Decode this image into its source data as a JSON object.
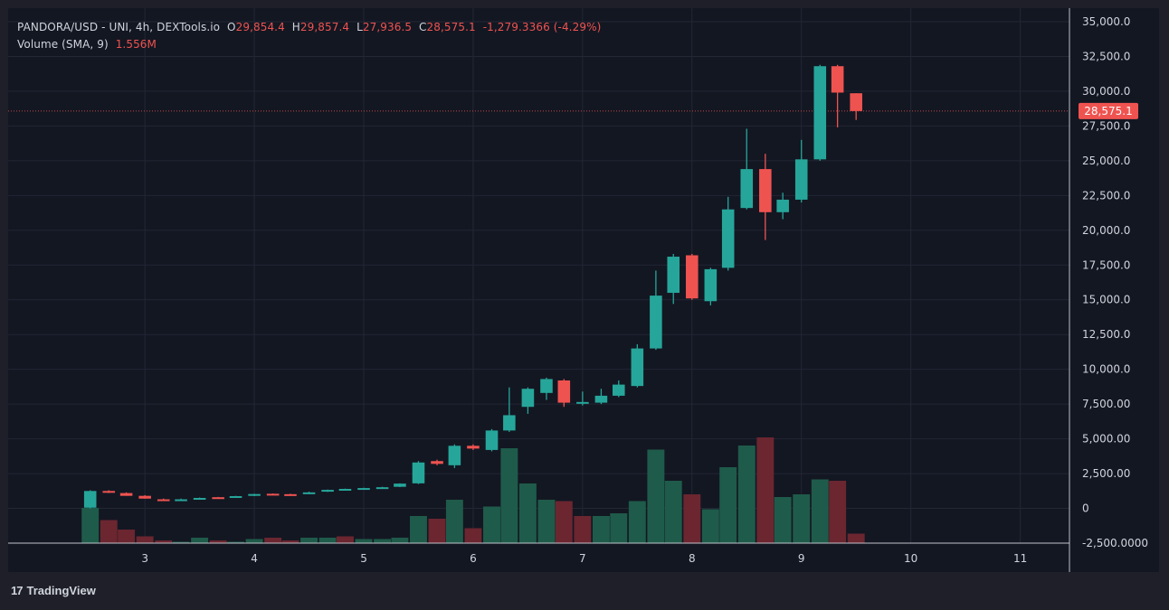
{
  "legend": {
    "symbol": "PANDORA/USD - UNI, 4h, DEXTools.io",
    "open_prefix": "O",
    "open": "29,854.4",
    "high_prefix": "H",
    "high": "29,857.4",
    "low_prefix": "L",
    "low": "27,936.5",
    "close_prefix": "C",
    "close": "28,575.1",
    "change": "-1,279.3366 (-4.29%)",
    "volume_label": "Volume (SMA, 9)",
    "volume_value": "1.556M"
  },
  "footer": {
    "logo_mark": "17",
    "brand": "TradingView"
  },
  "colors": {
    "up": "#26a69a",
    "down": "#ef5350",
    "vol_up": "#1f5b4a",
    "vol_down": "#6b2630",
    "background": "#131722",
    "grid": "#232734",
    "text": "#d1d4dc"
  },
  "chart_data": {
    "type": "candlestick",
    "ylim": [
      -2500,
      35000
    ],
    "price_ticks": [
      "35,000.0",
      "32,500.0",
      "30,000.0",
      "27,500.0",
      "25,000.0",
      "22,500.0",
      "20,000.0",
      "17,500.0",
      "15,000.0",
      "12,500.0",
      "10,000.0",
      "7,500.00",
      "5,000.00",
      "2,500.00",
      "0",
      "-2,500.0000"
    ],
    "price_tick_values": [
      35000,
      32500,
      30000,
      27500,
      25000,
      22500,
      20000,
      17500,
      15000,
      12500,
      10000,
      7500,
      5000,
      2500,
      0,
      -2500
    ],
    "x_ticks": [
      "3",
      "4",
      "5",
      "6",
      "7",
      "8",
      "9",
      "10",
      "11"
    ],
    "x_tick_values": [
      3,
      4,
      5,
      6,
      7,
      8,
      9,
      10,
      11
    ],
    "xlim": [
      1.75,
      11.45
    ],
    "last_price": 28575.1,
    "last_price_label": "28,575.1",
    "candles": [
      {
        "t": 2.5,
        "o": 50,
        "h": 1300,
        "l": 0,
        "c": 1250
      },
      {
        "t": 2.67,
        "o": 1250,
        "h": 1300,
        "l": 1100,
        "c": 1150
      },
      {
        "t": 2.83,
        "o": 1100,
        "h": 1150,
        "l": 900,
        "c": 900
      },
      {
        "t": 3.0,
        "o": 900,
        "h": 950,
        "l": 700,
        "c": 700
      },
      {
        "t": 3.17,
        "o": 650,
        "h": 700,
        "l": 550,
        "c": 580
      },
      {
        "t": 3.33,
        "o": 580,
        "h": 700,
        "l": 560,
        "c": 650
      },
      {
        "t": 3.5,
        "o": 650,
        "h": 780,
        "l": 630,
        "c": 750
      },
      {
        "t": 3.67,
        "o": 800,
        "h": 820,
        "l": 770,
        "c": 790
      },
      {
        "t": 3.83,
        "o": 800,
        "h": 900,
        "l": 780,
        "c": 880
      },
      {
        "t": 4.0,
        "o": 900,
        "h": 1050,
        "l": 880,
        "c": 1030
      },
      {
        "t": 4.17,
        "o": 1050,
        "h": 1070,
        "l": 1000,
        "c": 1020
      },
      {
        "t": 4.33,
        "o": 1020,
        "h": 1050,
        "l": 990,
        "c": 1000
      },
      {
        "t": 4.5,
        "o": 1050,
        "h": 1200,
        "l": 1030,
        "c": 1150
      },
      {
        "t": 4.67,
        "o": 1200,
        "h": 1350,
        "l": 1180,
        "c": 1330
      },
      {
        "t": 4.83,
        "o": 1350,
        "h": 1420,
        "l": 1330,
        "c": 1400
      },
      {
        "t": 5.0,
        "o": 1400,
        "h": 1480,
        "l": 1380,
        "c": 1460
      },
      {
        "t": 5.17,
        "o": 1480,
        "h": 1550,
        "l": 1460,
        "c": 1520
      },
      {
        "t": 5.33,
        "o": 1550,
        "h": 1800,
        "l": 1530,
        "c": 1780
      },
      {
        "t": 5.5,
        "o": 1800,
        "h": 3400,
        "l": 1750,
        "c": 3300
      },
      {
        "t": 5.67,
        "o": 3400,
        "h": 3500,
        "l": 3100,
        "c": 3200
      },
      {
        "t": 5.83,
        "o": 3100,
        "h": 4600,
        "l": 2900,
        "c": 4500
      },
      {
        "t": 6.0,
        "o": 4500,
        "h": 4600,
        "l": 4200,
        "c": 4300
      },
      {
        "t": 6.17,
        "o": 4200,
        "h": 5700,
        "l": 4100,
        "c": 5600
      },
      {
        "t": 6.33,
        "o": 5600,
        "h": 8700,
        "l": 5500,
        "c": 6700
      },
      {
        "t": 6.5,
        "o": 7300,
        "h": 8700,
        "l": 6800,
        "c": 8600
      },
      {
        "t": 6.67,
        "o": 8300,
        "h": 9400,
        "l": 7800,
        "c": 9300
      },
      {
        "t": 6.83,
        "o": 9200,
        "h": 9300,
        "l": 7300,
        "c": 7600
      },
      {
        "t": 7.0,
        "o": 7600,
        "h": 8400,
        "l": 7400,
        "c": 7650
      },
      {
        "t": 7.17,
        "o": 7600,
        "h": 8600,
        "l": 7500,
        "c": 8100
      },
      {
        "t": 7.33,
        "o": 8100,
        "h": 9200,
        "l": 8000,
        "c": 8900
      },
      {
        "t": 7.5,
        "o": 8800,
        "h": 11800,
        "l": 8700,
        "c": 11500
      },
      {
        "t": 7.67,
        "o": 11500,
        "h": 17100,
        "l": 11400,
        "c": 15300
      },
      {
        "t": 7.83,
        "o": 15500,
        "h": 18300,
        "l": 14700,
        "c": 18100
      },
      {
        "t": 8.0,
        "o": 18200,
        "h": 18300,
        "l": 15000,
        "c": 15100
      },
      {
        "t": 8.17,
        "o": 14900,
        "h": 17300,
        "l": 14600,
        "c": 17200
      },
      {
        "t": 8.33,
        "o": 17300,
        "h": 22400,
        "l": 17100,
        "c": 21500
      },
      {
        "t": 8.5,
        "o": 21600,
        "h": 27300,
        "l": 21500,
        "c": 24400
      },
      {
        "t": 8.67,
        "o": 24400,
        "h": 25500,
        "l": 19300,
        "c": 21300
      },
      {
        "t": 8.83,
        "o": 21300,
        "h": 22700,
        "l": 20800,
        "c": 22200
      },
      {
        "t": 9.0,
        "o": 22200,
        "h": 26500,
        "l": 22000,
        "c": 25100
      },
      {
        "t": 9.17,
        "o": 25100,
        "h": 31900,
        "l": 25000,
        "c": 31800
      },
      {
        "t": 9.33,
        "o": 31800,
        "h": 31900,
        "l": 27400,
        "c": 29900
      },
      {
        "t": 9.5,
        "o": 29854.4,
        "h": 29857.4,
        "l": 27936.5,
        "c": 28575.1
      }
    ],
    "volume_ylim": [
      0,
      1
    ],
    "volumes": [
      {
        "t": 2.5,
        "v": 0.26,
        "up": true
      },
      {
        "t": 2.67,
        "v": 0.17,
        "up": false
      },
      {
        "t": 2.83,
        "v": 0.1,
        "up": false
      },
      {
        "t": 3.0,
        "v": 0.05,
        "up": false
      },
      {
        "t": 3.17,
        "v": 0.02,
        "up": false
      },
      {
        "t": 3.33,
        "v": 0.01,
        "up": true
      },
      {
        "t": 3.5,
        "v": 0.04,
        "up": true
      },
      {
        "t": 3.67,
        "v": 0.02,
        "up": false
      },
      {
        "t": 3.83,
        "v": 0.01,
        "up": true
      },
      {
        "t": 4.0,
        "v": 0.03,
        "up": true
      },
      {
        "t": 4.17,
        "v": 0.04,
        "up": false
      },
      {
        "t": 4.33,
        "v": 0.02,
        "up": false
      },
      {
        "t": 4.5,
        "v": 0.04,
        "up": true
      },
      {
        "t": 4.67,
        "v": 0.04,
        "up": true
      },
      {
        "t": 4.83,
        "v": 0.05,
        "up": false
      },
      {
        "t": 5.0,
        "v": 0.03,
        "up": true
      },
      {
        "t": 5.17,
        "v": 0.03,
        "up": true
      },
      {
        "t": 5.33,
        "v": 0.04,
        "up": true
      },
      {
        "t": 5.5,
        "v": 0.2,
        "up": true
      },
      {
        "t": 5.67,
        "v": 0.18,
        "up": false
      },
      {
        "t": 5.83,
        "v": 0.32,
        "up": true
      },
      {
        "t": 6.0,
        "v": 0.11,
        "up": false
      },
      {
        "t": 6.17,
        "v": 0.27,
        "up": true
      },
      {
        "t": 6.33,
        "v": 0.7,
        "up": true
      },
      {
        "t": 6.5,
        "v": 0.44,
        "up": true
      },
      {
        "t": 6.67,
        "v": 0.32,
        "up": true
      },
      {
        "t": 6.83,
        "v": 0.31,
        "up": false
      },
      {
        "t": 7.0,
        "v": 0.2,
        "up": false
      },
      {
        "t": 7.17,
        "v": 0.2,
        "up": true
      },
      {
        "t": 7.33,
        "v": 0.22,
        "up": true
      },
      {
        "t": 7.5,
        "v": 0.31,
        "up": true
      },
      {
        "t": 7.67,
        "v": 0.69,
        "up": true
      },
      {
        "t": 7.83,
        "v": 0.46,
        "up": true
      },
      {
        "t": 8.0,
        "v": 0.36,
        "up": false
      },
      {
        "t": 8.17,
        "v": 0.25,
        "up": true
      },
      {
        "t": 8.33,
        "v": 0.56,
        "up": true
      },
      {
        "t": 8.5,
        "v": 0.72,
        "up": true
      },
      {
        "t": 8.67,
        "v": 0.78,
        "up": false
      },
      {
        "t": 8.83,
        "v": 0.34,
        "up": true
      },
      {
        "t": 9.0,
        "v": 0.36,
        "up": true
      },
      {
        "t": 9.17,
        "v": 0.47,
        "up": true
      },
      {
        "t": 9.33,
        "v": 0.46,
        "up": false
      },
      {
        "t": 9.5,
        "v": 0.07,
        "up": false
      }
    ]
  }
}
